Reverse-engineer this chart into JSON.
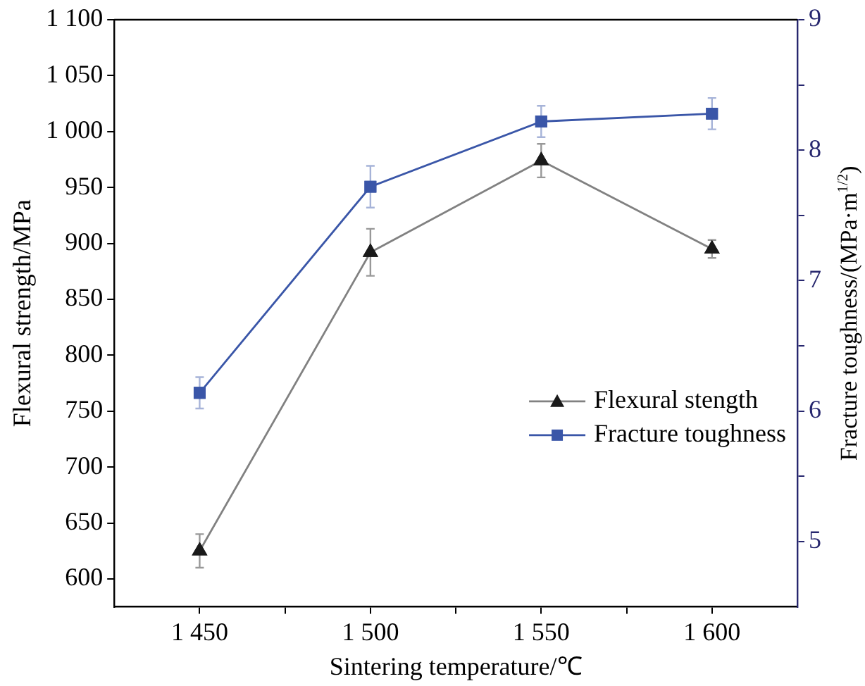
{
  "chart_data": {
    "type": "line",
    "xlabel": "Sintering temperature/℃",
    "ylabel": "Flexural strength/MPa",
    "y2label": "Fracture toughness/(MPa·m$^{1/2}$)",
    "x": [
      1450,
      1500,
      1550,
      1600
    ],
    "xlim": [
      1425,
      1625
    ],
    "xticks": [
      {
        "value": 1450,
        "label": "1 450"
      },
      {
        "value": 1475,
        "label": null
      },
      {
        "value": 1500,
        "label": "1 500"
      },
      {
        "value": 1525,
        "label": null
      },
      {
        "value": 1550,
        "label": "1 550"
      },
      {
        "value": 1575,
        "label": null
      },
      {
        "value": 1600,
        "label": "1 600"
      }
    ],
    "ylim": [
      575,
      1100
    ],
    "yticks": [
      600,
      650,
      700,
      750,
      800,
      850,
      900,
      950,
      {
        "value": 1000,
        "label": "1 000"
      },
      {
        "value": 1050,
        "label": "1 050"
      },
      {
        "value": 1100,
        "label": "1 100"
      }
    ],
    "y2lim": [
      4.5,
      9
    ],
    "y2ticks": [
      5,
      {
        "value": 5.5,
        "label": null
      },
      6,
      {
        "value": 6.5,
        "label": null
      },
      7,
      {
        "value": 7.5,
        "label": null
      },
      8,
      {
        "value": 8.5,
        "label": null
      },
      9
    ],
    "series": [
      {
        "name": "Flexural stength",
        "color": "#1a1a1a",
        "marker": "triangle",
        "values": [
          625,
          892,
          974,
          895
        ],
        "errors": [
          15,
          21,
          15,
          8
        ]
      },
      {
        "name": "Fracture toughness",
        "color": "#3a56a8",
        "marker": "square",
        "axis": "y2",
        "values": [
          6.14,
          7.72,
          8.22,
          8.28
        ],
        "errors": [
          0.12,
          0.16,
          0.12,
          0.12
        ]
      }
    ],
    "legend": "right",
    "line_style": "solid"
  }
}
